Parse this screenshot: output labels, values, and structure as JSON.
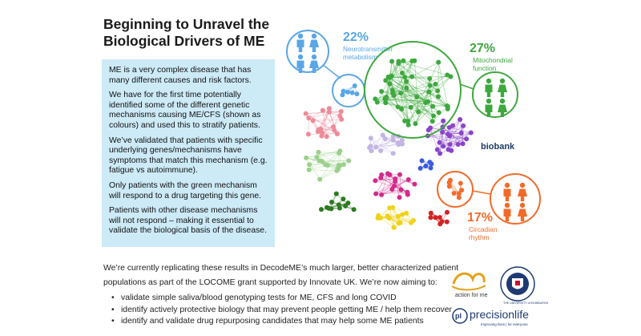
{
  "title": {
    "line1": "Beginning to Unravel the",
    "line2": "Biological Drivers of ME"
  },
  "info": {
    "paragraphs": [
      "ME is a very complex disease that has many different causes and risk factors.",
      "We have for the first time potentially identified some of the different genetic mechanisms causing ME/CFS (shown as colours) and used this to stratify patients.",
      "We’ve validated that patients with specific underlying genes/mechanisms have symptoms that match this mechanism (e.g. fatigue vs autoimmune).",
      "Only patients with the green mechanism will respond to a drug targeting this gene.",
      "Patients with other disease mechanisms will not respond – making it essential to validate the biological basis of the disease."
    ]
  },
  "callouts": {
    "neuro": {
      "percent": "22%",
      "label_line1": "Neurotransmitter",
      "label_line2": "metabolism",
      "color": "#5aa6e6"
    },
    "mito": {
      "percent": "27%",
      "label_line1": "Mitochondrial",
      "label_line2": "function",
      "color": "#3ea83e"
    },
    "circ": {
      "percent": "17%",
      "label_line1": "Circadian",
      "label_line2": "rhythm",
      "color": "#f26b2a"
    }
  },
  "biobank": "biobank",
  "bottom": {
    "intro_line1": "We’re currently replicating these results in DecodeME’s much larger, better characterized patient",
    "intro_line2": "populations as part of the LOCOME grant supported by Innovate UK. We’re now aiming to:",
    "bullets": [
      "validate simple saliva/blood genotyping tests for ME, CFS and long COVID",
      "identify actively protective biology that may prevent people getting ME / help them recover",
      "identify and validate drug repurposing candidates that may help some ME patients"
    ]
  },
  "logos": {
    "actionforme": "action for me",
    "edinburgh": "THE UNIVERSITY of EDINBURGH",
    "pl_mark": "pl",
    "precisionlife": "precisionlife",
    "tagline": "Improving lives | for everyone"
  }
}
